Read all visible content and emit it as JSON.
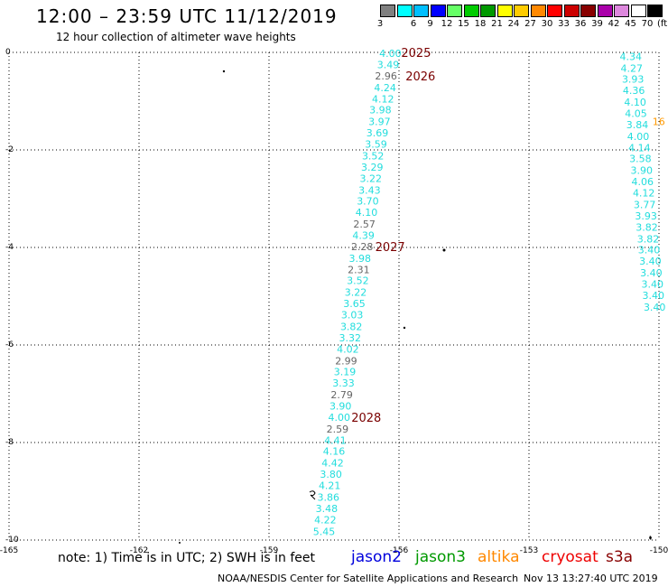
{
  "header": {
    "title": "12:00 – 23:59 UTC 11/12/2019",
    "subtitle": "12 hour collection of altimeter wave heights"
  },
  "legend": {
    "labels": [
      "3",
      "6",
      "9",
      "12",
      "15",
      "18",
      "21",
      "24",
      "27",
      "30",
      "33",
      "36",
      "39",
      "42",
      "45",
      "70",
      "(ft)"
    ],
    "colors": [
      "#808080",
      "#00ffff",
      "#00bfff",
      "#0000ff",
      "#66ff66",
      "#00cc00",
      "#009900",
      "#ffff00",
      "#ffcc00",
      "#ff8800",
      "#ff0000",
      "#cc0000",
      "#880000",
      "#aa00aa",
      "#dd88dd",
      "#ffffff",
      "#000000"
    ]
  },
  "chart_data": {
    "type": "scatter",
    "x_ticks": [
      "-165",
      "-162",
      "-159",
      "-156",
      "-153",
      "-150"
    ],
    "y_ticks": [
      "0",
      "-2",
      "-4",
      "-6",
      "-8",
      "-10"
    ],
    "tracks": [
      {
        "satellite": "jason2",
        "points": [
          {
            "lon": -156.2,
            "lat": -0.02,
            "v": "4.00",
            "c": "cyan"
          },
          {
            "lon": -156.25,
            "lat": -0.25,
            "v": "3.49",
            "c": "cyan"
          },
          {
            "lon": -156.3,
            "lat": -0.48,
            "v": "2.96",
            "c": "gray"
          },
          {
            "lon": -156.32,
            "lat": -0.72,
            "v": "4.24",
            "c": "cyan"
          },
          {
            "lon": -156.37,
            "lat": -0.95,
            "v": "4.12",
            "c": "cyan"
          },
          {
            "lon": -156.43,
            "lat": -1.18,
            "v": "3.98",
            "c": "cyan"
          },
          {
            "lon": -156.45,
            "lat": -1.42,
            "v": "3.97",
            "c": "cyan"
          },
          {
            "lon": -156.5,
            "lat": -1.65,
            "v": "3.69",
            "c": "cyan"
          },
          {
            "lon": -156.53,
            "lat": -1.88,
            "v": "3.59",
            "c": "cyan"
          },
          {
            "lon": -156.6,
            "lat": -2.12,
            "v": "3.52",
            "c": "cyan"
          },
          {
            "lon": -156.62,
            "lat": -2.35,
            "v": "3.29",
            "c": "cyan"
          },
          {
            "lon": -156.65,
            "lat": -2.58,
            "v": "3.22",
            "c": "cyan"
          },
          {
            "lon": -156.68,
            "lat": -2.82,
            "v": "3.43",
            "c": "cyan"
          },
          {
            "lon": -156.72,
            "lat": -3.05,
            "v": "3.70",
            "c": "cyan"
          },
          {
            "lon": -156.75,
            "lat": -3.28,
            "v": "4.10",
            "c": "cyan"
          },
          {
            "lon": -156.8,
            "lat": -3.52,
            "v": "2.57",
            "c": "gray"
          },
          {
            "lon": -156.82,
            "lat": -3.75,
            "v": "4.39",
            "c": "cyan"
          },
          {
            "lon": -156.85,
            "lat": -3.98,
            "v": "2.28",
            "c": "gray"
          },
          {
            "lon": -156.9,
            "lat": -4.22,
            "v": "3.98",
            "c": "cyan"
          },
          {
            "lon": -156.93,
            "lat": -4.45,
            "v": "2.31",
            "c": "gray"
          },
          {
            "lon": -156.95,
            "lat": -4.68,
            "v": "3.52",
            "c": "cyan"
          },
          {
            "lon": -157.0,
            "lat": -4.92,
            "v": "3.22",
            "c": "cyan"
          },
          {
            "lon": -157.03,
            "lat": -5.15,
            "v": "3.65",
            "c": "cyan"
          },
          {
            "lon": -157.08,
            "lat": -5.38,
            "v": "3.03",
            "c": "cyan"
          },
          {
            "lon": -157.1,
            "lat": -5.62,
            "v": "3.82",
            "c": "cyan"
          },
          {
            "lon": -157.13,
            "lat": -5.85,
            "v": "3.32",
            "c": "cyan"
          },
          {
            "lon": -157.18,
            "lat": -6.08,
            "v": "4.02",
            "c": "cyan"
          },
          {
            "lon": -157.22,
            "lat": -6.32,
            "v": "2.99",
            "c": "gray"
          },
          {
            "lon": -157.25,
            "lat": -6.55,
            "v": "3.19",
            "c": "cyan"
          },
          {
            "lon": -157.28,
            "lat": -6.78,
            "v": "3.33",
            "c": "cyan"
          },
          {
            "lon": -157.32,
            "lat": -7.02,
            "v": "2.79",
            "c": "gray"
          },
          {
            "lon": -157.35,
            "lat": -7.25,
            "v": "3.90",
            "c": "cyan"
          },
          {
            "lon": -157.38,
            "lat": -7.48,
            "v": "4.00",
            "c": "cyan"
          },
          {
            "lon": -157.42,
            "lat": -7.72,
            "v": "2.59",
            "c": "gray"
          },
          {
            "lon": -157.47,
            "lat": -7.95,
            "v": "4.41",
            "c": "cyan"
          },
          {
            "lon": -157.5,
            "lat": -8.18,
            "v": "4.16",
            "c": "cyan"
          },
          {
            "lon": -157.53,
            "lat": -8.42,
            "v": "4.42",
            "c": "cyan"
          },
          {
            "lon": -157.57,
            "lat": -8.65,
            "v": "3.80",
            "c": "cyan"
          },
          {
            "lon": -157.6,
            "lat": -8.88,
            "v": "4.21",
            "c": "cyan"
          },
          {
            "lon": -157.63,
            "lat": -9.12,
            "v": "3.86",
            "c": "cyan"
          },
          {
            "lon": -157.67,
            "lat": -9.35,
            "v": "3.48",
            "c": "cyan"
          },
          {
            "lon": -157.7,
            "lat": -9.58,
            "v": "4.22",
            "c": "cyan"
          },
          {
            "lon": -157.73,
            "lat": -9.82,
            "v": "5.45",
            "c": "cyan"
          }
        ]
      },
      {
        "satellite": "jason2",
        "points": [
          {
            "lon": -150.65,
            "lat": -0.08,
            "v": "4.34",
            "c": "cyan"
          },
          {
            "lon": -150.63,
            "lat": -0.32,
            "v": "4.27",
            "c": "cyan"
          },
          {
            "lon": -150.6,
            "lat": -0.55,
            "v": "3.93",
            "c": "cyan"
          },
          {
            "lon": -150.58,
            "lat": -0.78,
            "v": "4.36",
            "c": "cyan"
          },
          {
            "lon": -150.55,
            "lat": -1.02,
            "v": "4.10",
            "c": "cyan"
          },
          {
            "lon": -150.53,
            "lat": -1.25,
            "v": "4.05",
            "c": "cyan"
          },
          {
            "lon": -150.5,
            "lat": -1.48,
            "v": "3.84",
            "c": "cyan"
          },
          {
            "lon": -150.48,
            "lat": -1.72,
            "v": "4.00",
            "c": "cyan"
          },
          {
            "lon": -150.45,
            "lat": -1.95,
            "v": "4.14",
            "c": "cyan"
          },
          {
            "lon": -150.43,
            "lat": -2.18,
            "v": "3.58",
            "c": "cyan"
          },
          {
            "lon": -150.4,
            "lat": -2.42,
            "v": "3.90",
            "c": "cyan"
          },
          {
            "lon": -150.38,
            "lat": -2.65,
            "v": "4.06",
            "c": "cyan"
          },
          {
            "lon": -150.35,
            "lat": -2.88,
            "v": "4.12",
            "c": "cyan"
          },
          {
            "lon": -150.33,
            "lat": -3.12,
            "v": "3.77",
            "c": "cyan"
          },
          {
            "lon": -150.3,
            "lat": -3.35,
            "v": "3.93",
            "c": "cyan"
          },
          {
            "lon": -150.28,
            "lat": -3.58,
            "v": "3.82",
            "c": "cyan"
          },
          {
            "lon": -150.25,
            "lat": -3.82,
            "v": "3.82",
            "c": "cyan"
          },
          {
            "lon": -150.23,
            "lat": -4.05,
            "v": "3.40",
            "c": "cyan"
          },
          {
            "lon": -150.2,
            "lat": -4.28,
            "v": "3.40",
            "c": "cyan"
          },
          {
            "lon": -150.18,
            "lat": -4.52,
            "v": "3.40",
            "c": "cyan"
          },
          {
            "lon": -150.15,
            "lat": -4.75,
            "v": "3.40",
            "c": "cyan"
          },
          {
            "lon": -150.13,
            "lat": -4.98,
            "v": "3.40",
            "c": "cyan"
          },
          {
            "lon": -150.1,
            "lat": -5.22,
            "v": "3.40",
            "c": "cyan"
          }
        ]
      }
    ],
    "time_labels": [
      {
        "lon": -155.95,
        "lat": 0.0,
        "text": "2025"
      },
      {
        "lon": -155.85,
        "lat": -0.48,
        "text": "2026"
      },
      {
        "lon": -156.55,
        "lat": -3.98,
        "text": "2027"
      },
      {
        "lon": -157.1,
        "lat": -7.48,
        "text": "2028"
      }
    ],
    "partial_labels": [
      {
        "lon": -150.15,
        "lat": -1.42,
        "text": "16",
        "c": "orange"
      }
    ]
  },
  "note": {
    "text": "note:  1) Time is in UTC;  2) SWH is in feet"
  },
  "satellites": [
    {
      "name": "jason2",
      "color": "#0000dd"
    },
    {
      "name": "jason3",
      "color": "#009900"
    },
    {
      "name": "altika",
      "color": "#ff8800"
    },
    {
      "name": "cryosat",
      "color": "#ee0000"
    },
    {
      "name": "s3a",
      "color": "#880000"
    }
  ],
  "footer": {
    "left": "NOAA/NESDIS Center for Satellite Applications and Research",
    "right": "Nov 13 13:27:40 UTC 2019"
  }
}
